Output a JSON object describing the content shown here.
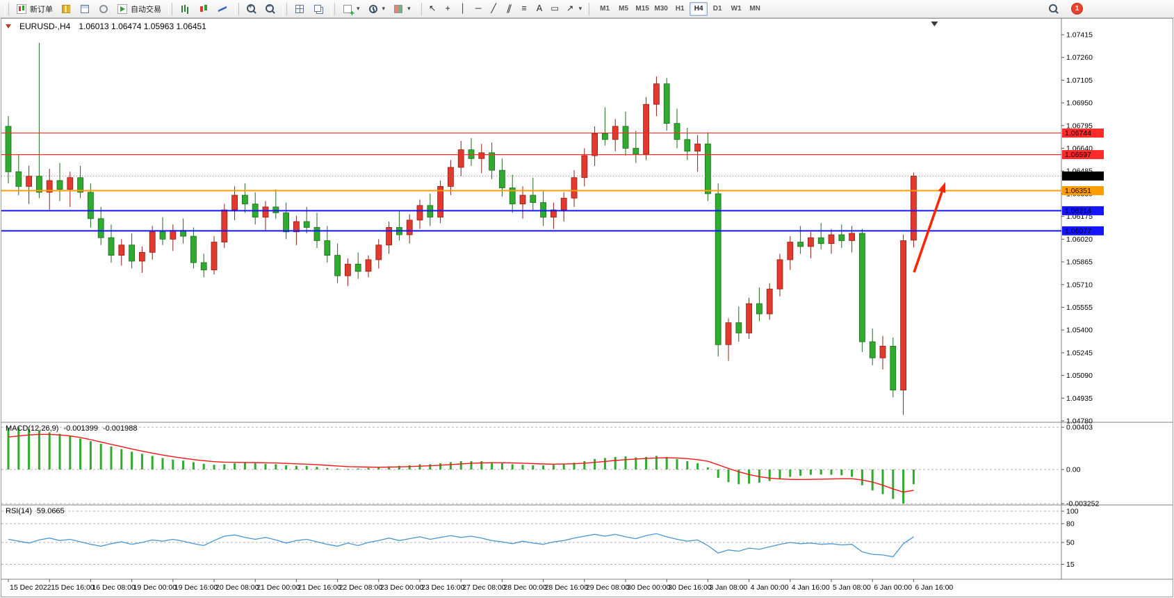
{
  "toolbar": {
    "new_order_label": "新订单",
    "autotrading_label": "自动交易",
    "timeframes": [
      "M1",
      "M5",
      "M15",
      "M30",
      "H1",
      "H4",
      "D1",
      "W1",
      "MN"
    ],
    "active_timeframe": "H4",
    "notification_count": "1"
  },
  "tool_icons": {
    "cursor": "↖",
    "crosshair": "+",
    "vline": "│",
    "hline": "─",
    "trendline": "╱",
    "channel": "∥",
    "fibonacci": "≡",
    "text": "A",
    "label": "▭",
    "arrows": "↗",
    "dropdown": "▾"
  },
  "chart": {
    "title_symbol": "EURUSD-,H4",
    "title_ohlc": "1.06013 1.06474 1.05963 1.06451"
  },
  "chart_data": [
    {
      "type": "candlestick",
      "symbol": "EURUSD-",
      "timeframe": "H4",
      "open": "1.06013",
      "high": "1.06474",
      "low": "1.05963",
      "close": "1.06451",
      "up_color": "#e23a2e",
      "down_color": "#2fab2f",
      "up_border": "#8f1d14",
      "down_border": "#1d6b1d",
      "price_axis_ticks": [
        1.07415,
        1.0726,
        1.07105,
        1.0695,
        1.06795,
        1.0664,
        1.06485,
        1.0633,
        1.06175,
        1.0602,
        1.05865,
        1.0571,
        1.05555,
        1.054,
        1.05245,
        1.0509,
        1.04935,
        1.0478
      ],
      "time_labels": [
        "15 Dec 2022",
        "15 Dec 16:00",
        "16 Dec 08:00",
        "19 Dec 00:00",
        "19 Dec 16:00",
        "20 Dec 08:00",
        "21 Dec 00:00",
        "21 Dec 16:00",
        "22 Dec 08:00",
        "23 Dec 00:00",
        "23 Dec 16:00",
        "27 Dec 08:00",
        "28 Dec 00:00",
        "28 Dec 16:00",
        "29 Dec 08:00",
        "30 Dec 00:00",
        "30 Dec 16:00",
        "3 Jan 08:00",
        "4 Jan 00:00",
        "4 Jan 16:00",
        "5 Jan 08:00",
        "6 Jan 00:00",
        "6 Jan 16:00"
      ],
      "horizontal_lines": [
        {
          "price": 1.06744,
          "color": "#ff2a2a",
          "width": 1.2,
          "label": "1.06744"
        },
        {
          "price": 1.06597,
          "color": "#ff2a2a",
          "width": 1.2,
          "label": "1.06597"
        },
        {
          "price": 1.06351,
          "color": "#ff9c00",
          "width": 2,
          "label": "1.06351"
        },
        {
          "price": 1.06214,
          "color": "#1515ff",
          "width": 2,
          "label": "1.06214"
        },
        {
          "price": 1.06077,
          "color": "#1515ff",
          "width": 2,
          "label": "1.06077"
        }
      ],
      "current_price": 1.06451,
      "arrow_annotation": {
        "from": [
          1315,
          392
        ],
        "to": [
          1360,
          262
        ],
        "color": "#ff2600"
      },
      "candles": [
        [
          1.0679,
          1.0686,
          1.064,
          1.0648
        ],
        [
          1.0648,
          1.066,
          1.0632,
          1.0638
        ],
        [
          1.0638,
          1.0652,
          1.0626,
          1.0645
        ],
        [
          1.0645,
          1.0736,
          1.063,
          1.0634
        ],
        [
          1.0634,
          1.065,
          1.0622,
          1.0642
        ],
        [
          1.0642,
          1.0654,
          1.0628,
          1.0636
        ],
        [
          1.0636,
          1.0648,
          1.0624,
          1.0644
        ],
        [
          1.0644,
          1.0652,
          1.063,
          1.0634
        ],
        [
          1.0634,
          1.064,
          1.061,
          1.0616
        ],
        [
          1.0616,
          1.0624,
          1.0598,
          1.0603
        ],
        [
          1.0603,
          1.0612,
          1.0586,
          1.0591
        ],
        [
          1.0591,
          1.0602,
          1.0584,
          1.0598
        ],
        [
          1.0598,
          1.0606,
          1.0582,
          1.0587
        ],
        [
          1.0587,
          1.0597,
          1.0579,
          1.0593
        ],
        [
          1.0593,
          1.0611,
          1.0588,
          1.0607
        ],
        [
          1.0607,
          1.0617,
          1.0598,
          1.0602
        ],
        [
          1.0602,
          1.0612,
          1.0594,
          1.0608
        ],
        [
          1.0608,
          1.0616,
          1.0599,
          1.0604
        ],
        [
          1.0604,
          1.061,
          1.0582,
          1.0586
        ],
        [
          1.0586,
          1.0592,
          1.0576,
          1.0581
        ],
        [
          1.0581,
          1.0604,
          1.0578,
          1.06
        ],
        [
          1.06,
          1.0626,
          1.0596,
          1.0622
        ],
        [
          1.0622,
          1.0638,
          1.0615,
          1.0632
        ],
        [
          1.0632,
          1.064,
          1.062,
          1.0626
        ],
        [
          1.0626,
          1.0634,
          1.0612,
          1.0617
        ],
        [
          1.0617,
          1.0628,
          1.0608,
          1.0624
        ],
        [
          1.0624,
          1.0636,
          1.0616,
          1.062
        ],
        [
          1.062,
          1.0627,
          1.0602,
          1.0607
        ],
        [
          1.0607,
          1.0618,
          1.0598,
          1.0614
        ],
        [
          1.0614,
          1.0624,
          1.0606,
          1.061
        ],
        [
          1.061,
          1.062,
          1.0596,
          1.0601
        ],
        [
          1.0601,
          1.0611,
          1.0586,
          1.0591
        ],
        [
          1.0591,
          1.0599,
          1.0572,
          1.0577
        ],
        [
          1.0577,
          1.0589,
          1.057,
          1.0585
        ],
        [
          1.0585,
          1.0593,
          1.0575,
          1.058
        ],
        [
          1.058,
          1.0591,
          1.0576,
          1.0588
        ],
        [
          1.0588,
          1.0602,
          1.0582,
          1.0598
        ],
        [
          1.0598,
          1.0614,
          1.0592,
          1.061
        ],
        [
          1.061,
          1.0621,
          1.0601,
          1.0605
        ],
        [
          1.0605,
          1.0619,
          1.0599,
          1.0615
        ],
        [
          1.0615,
          1.0629,
          1.0609,
          1.0625
        ],
        [
          1.0625,
          1.0633,
          1.0611,
          1.0617
        ],
        [
          1.0617,
          1.0642,
          1.0613,
          1.0638
        ],
        [
          1.0638,
          1.0656,
          1.0632,
          1.0651
        ],
        [
          1.0651,
          1.0669,
          1.0645,
          1.0663
        ],
        [
          1.0663,
          1.0671,
          1.0652,
          1.0657
        ],
        [
          1.0657,
          1.0667,
          1.0647,
          1.0661
        ],
        [
          1.0661,
          1.0668,
          1.0643,
          1.0649
        ],
        [
          1.0649,
          1.0657,
          1.0631,
          1.0637
        ],
        [
          1.0637,
          1.0646,
          1.062,
          1.0626
        ],
        [
          1.0626,
          1.0638,
          1.0616,
          1.0632
        ],
        [
          1.0632,
          1.0644,
          1.0622,
          1.0627
        ],
        [
          1.0627,
          1.0635,
          1.0611,
          1.0617
        ],
        [
          1.0617,
          1.0627,
          1.0609,
          1.0622
        ],
        [
          1.0622,
          1.0634,
          1.0614,
          1.063
        ],
        [
          1.063,
          1.0649,
          1.0624,
          1.0644
        ],
        [
          1.0644,
          1.0664,
          1.0638,
          1.0659
        ],
        [
          1.0659,
          1.0679,
          1.0652,
          1.0674
        ],
        [
          1.0674,
          1.0692,
          1.0666,
          1.067
        ],
        [
          1.067,
          1.0684,
          1.0662,
          1.0679
        ],
        [
          1.0679,
          1.0689,
          1.0659,
          1.0664
        ],
        [
          1.0664,
          1.0676,
          1.0654,
          1.066
        ],
        [
          1.066,
          1.0699,
          1.0656,
          1.0694
        ],
        [
          1.0694,
          1.0713,
          1.0686,
          1.0708
        ],
        [
          1.0708,
          1.0712,
          1.0676,
          1.0681
        ],
        [
          1.0681,
          1.0691,
          1.0664,
          1.067
        ],
        [
          1.067,
          1.0678,
          1.0656,
          1.0662
        ],
        [
          1.0662,
          1.0673,
          1.0648,
          1.0667
        ],
        [
          1.0667,
          1.0675,
          1.0628,
          1.0633
        ],
        [
          1.0633,
          1.064,
          1.0522,
          1.053
        ],
        [
          1.053,
          1.0548,
          1.0519,
          1.0545
        ],
        [
          1.0545,
          1.0556,
          1.0532,
          1.0538
        ],
        [
          1.0538,
          1.0562,
          1.0534,
          1.0558
        ],
        [
          1.0558,
          1.0569,
          1.0546,
          1.0551
        ],
        [
          1.0551,
          1.0572,
          1.0547,
          1.0568
        ],
        [
          1.0568,
          1.0592,
          1.0563,
          1.0588
        ],
        [
          1.0588,
          1.0604,
          1.0581,
          1.06
        ],
        [
          1.06,
          1.0611,
          1.0592,
          1.0597
        ],
        [
          1.0597,
          1.0607,
          1.0589,
          1.0603
        ],
        [
          1.0603,
          1.0613,
          1.0595,
          1.0599
        ],
        [
          1.0599,
          1.0609,
          1.0592,
          1.0605
        ],
        [
          1.0605,
          1.0612,
          1.0596,
          1.0601
        ],
        [
          1.0601,
          1.0611,
          1.0593,
          1.0606
        ],
        [
          1.0606,
          1.0609,
          1.0525,
          1.0532
        ],
        [
          1.0532,
          1.0541,
          1.0516,
          1.0521
        ],
        [
          1.0521,
          1.0536,
          1.0513,
          1.0529
        ],
        [
          1.0529,
          1.0535,
          1.0494,
          1.0499
        ],
        [
          1.0499,
          1.0605,
          1.0482,
          1.0601
        ],
        [
          1.06013,
          1.06474,
          1.05963,
          1.06451
        ]
      ]
    },
    {
      "type": "macd",
      "label": "MACD(12,26,9)",
      "values_display": [
        "-0.001399",
        "-0.001988"
      ],
      "axis_ticks": [
        "0.00403",
        "0.00",
        "-0.003252"
      ],
      "histogram_color": "#2fab2f",
      "signal_color": "#ff1414",
      "histogram": [
        0.004,
        0.00403,
        0.00385,
        0.0037,
        0.00355,
        0.0034,
        0.0032,
        0.00295,
        0.0027,
        0.00245,
        0.0022,
        0.00195,
        0.0017,
        0.0015,
        0.0013,
        0.0011,
        0.00095,
        0.00085,
        0.0007,
        0.00055,
        0.00045,
        0.0005,
        0.0006,
        0.00065,
        0.0006,
        0.00055,
        0.0005,
        0.0004,
        0.00035,
        0.00035,
        0.00025,
        0.00015,
        8e-05,
        5e-05,
        0.0001,
        0.00015,
        0.0002,
        0.0003,
        0.00035,
        0.0004,
        0.0005,
        0.0005,
        0.0006,
        0.0007,
        0.0008,
        0.0008,
        0.0008,
        0.0007,
        0.0006,
        0.0005,
        0.00045,
        0.0004,
        0.0004,
        0.00045,
        0.00055,
        0.00065,
        0.0008,
        0.001,
        0.0011,
        0.0012,
        0.00125,
        0.00115,
        0.0012,
        0.0013,
        0.0012,
        0.001,
        0.0008,
        0.0006,
        0.0002,
        -0.0008,
        -0.0012,
        -0.0014,
        -0.00135,
        -0.00125,
        -0.0011,
        -0.0009,
        -0.0007,
        -0.0006,
        -0.0005,
        -0.00048,
        -0.0005,
        -0.00055,
        -0.0007,
        -0.0015,
        -0.002,
        -0.00235,
        -0.0028,
        -0.00325,
        -0.0014
      ],
      "signal": [
        0.0031,
        0.0032,
        0.0033,
        0.00335,
        0.00335,
        0.0033,
        0.0032,
        0.00305,
        0.00285,
        0.00262,
        0.0024,
        0.00218,
        0.00196,
        0.00175,
        0.00156,
        0.00138,
        0.00122,
        0.00108,
        0.00095,
        0.00084,
        0.00075,
        0.0007,
        0.00068,
        0.00067,
        0.00066,
        0.00064,
        0.00062,
        0.00058,
        0.00054,
        0.00051,
        0.00046,
        0.0004,
        0.00034,
        0.00028,
        0.00025,
        0.00023,
        0.00022,
        0.00023,
        0.00025,
        0.00028,
        0.00032,
        0.00036,
        0.00041,
        0.00047,
        0.00053,
        0.00059,
        0.00063,
        0.00065,
        0.00065,
        0.00063,
        0.0006,
        0.00056,
        0.00053,
        0.00051,
        0.00052,
        0.00055,
        0.0006,
        0.00068,
        0.00077,
        0.00086,
        0.00094,
        0.001,
        0.00105,
        0.0011,
        0.00112,
        0.0011,
        0.00104,
        0.00094,
        0.00078,
        0.00045,
        0.0001,
        -0.00022,
        -0.00048,
        -0.00068,
        -0.00082,
        -0.0009,
        -0.00094,
        -0.00095,
        -0.00094,
        -0.00092,
        -0.0009,
        -0.00088,
        -0.00088,
        -0.001,
        -0.0012,
        -0.0015,
        -0.00185,
        -0.00215,
        -0.00199
      ]
    },
    {
      "type": "line",
      "label": "RSI(14)",
      "value_display": "59.0665",
      "axis_ticks": [
        "100",
        "80",
        "50",
        "15"
      ],
      "line_color": "#4896d2",
      "values": [
        55,
        52,
        49,
        54,
        57,
        53,
        55,
        51,
        47,
        44,
        48,
        51,
        47,
        50,
        54,
        52,
        55,
        52,
        48,
        45,
        53,
        60,
        62,
        58,
        55,
        58,
        54,
        49,
        53,
        55,
        51,
        47,
        44,
        49,
        45,
        50,
        53,
        57,
        53,
        56,
        59,
        55,
        58,
        61,
        58,
        60,
        57,
        53,
        51,
        48,
        52,
        49,
        47,
        51,
        53,
        57,
        60,
        63,
        60,
        63,
        59,
        56,
        61,
        64,
        59,
        55,
        52,
        54,
        45,
        33,
        38,
        36,
        41,
        39,
        43,
        47,
        50,
        48,
        49,
        47,
        48,
        46,
        47,
        35,
        31,
        30,
        27,
        48,
        59
      ]
    }
  ]
}
